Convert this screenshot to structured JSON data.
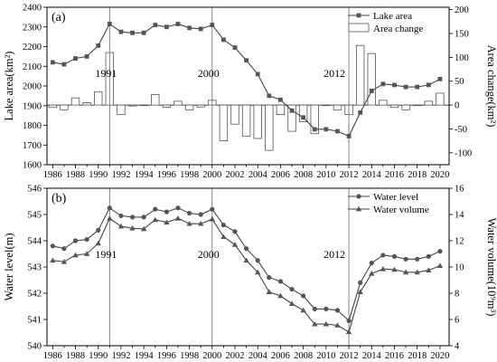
{
  "chart_data": [
    {
      "type": "line+bar",
      "panel_label": "(a)",
      "x": [
        1986,
        1987,
        1988,
        1989,
        1990,
        1991,
        1992,
        1993,
        1994,
        1995,
        1996,
        1997,
        1998,
        1999,
        2000,
        2001,
        2002,
        2003,
        2004,
        2005,
        2006,
        2007,
        2008,
        2009,
        2010,
        2011,
        2012,
        2013,
        2014,
        2015,
        2016,
        2017,
        2018,
        2019,
        2020
      ],
      "xlim": [
        1985.5,
        2020.8
      ],
      "xticks": [
        1986,
        1988,
        1990,
        1992,
        1994,
        1996,
        1998,
        2000,
        2002,
        2004,
        2006,
        2008,
        2010,
        2012,
        2014,
        2016,
        2018,
        2020
      ],
      "ylabel": "Lake area(km²)",
      "ylim": [
        1600,
        2400
      ],
      "yticks": [
        1600,
        1700,
        1800,
        1900,
        2000,
        2100,
        2200,
        2300,
        2400
      ],
      "y2label": "Area change(km²)",
      "y2lim": [
        -125,
        205
      ],
      "y2ticks": [
        -100,
        -50,
        0,
        50,
        100,
        150,
        200
      ],
      "series": [
        {
          "name": "Lake area",
          "axis": "left",
          "style": "line-square",
          "values": [
            2120,
            2110,
            2140,
            2150,
            2205,
            2315,
            2275,
            2270,
            2270,
            2310,
            2300,
            2315,
            2295,
            2290,
            2310,
            2235,
            2195,
            2130,
            2060,
            1950,
            1930,
            1875,
            1840,
            1780,
            1780,
            1770,
            1745,
            1865,
            1975,
            2010,
            2005,
            1995,
            1995,
            2005,
            2035
          ]
        },
        {
          "name": "Area change",
          "axis": "right",
          "style": "hollow-bar",
          "values": [
            -5,
            -10,
            15,
            5,
            28,
            110,
            -20,
            -2,
            0,
            22,
            -5,
            8,
            -10,
            -4,
            10,
            -75,
            -40,
            -65,
            -70,
            -95,
            -20,
            -55,
            -35,
            -60,
            0,
            -10,
            -20,
            125,
            108,
            10,
            -5,
            -10,
            0,
            8,
            25
          ]
        }
      ],
      "vlines": [
        1991,
        2000,
        2012
      ],
      "annotations": [
        "1991",
        "2000",
        "2012"
      ],
      "legend_placement": "top-right"
    },
    {
      "type": "line",
      "panel_label": "(b)",
      "x": [
        1986,
        1987,
        1988,
        1989,
        1990,
        1991,
        1992,
        1993,
        1994,
        1995,
        1996,
        1997,
        1998,
        1999,
        2000,
        2001,
        2002,
        2003,
        2004,
        2005,
        2006,
        2007,
        2008,
        2009,
        2010,
        2011,
        2012,
        2013,
        2014,
        2015,
        2016,
        2017,
        2018,
        2019,
        2020
      ],
      "xlim": [
        1985.5,
        2020.8
      ],
      "xticks": [
        1986,
        1988,
        1990,
        1992,
        1994,
        1996,
        1998,
        2000,
        2002,
        2004,
        2006,
        2008,
        2010,
        2012,
        2014,
        2016,
        2018,
        2020
      ],
      "ylabel": "Water level(m)",
      "ylim": [
        540,
        546
      ],
      "yticks": [
        540,
        541,
        542,
        543,
        544,
        545,
        546
      ],
      "y2label": "Water volume(10⁹m³)",
      "y2lim": [
        4,
        16
      ],
      "y2ticks": [
        4,
        6,
        8,
        10,
        12,
        14,
        16
      ],
      "series": [
        {
          "name": "Water level",
          "axis": "left",
          "style": "line-circle",
          "values": [
            543.8,
            543.7,
            544.0,
            544.05,
            544.4,
            545.25,
            544.95,
            544.9,
            544.9,
            545.2,
            545.1,
            545.25,
            545.05,
            545.0,
            545.2,
            544.6,
            544.35,
            543.7,
            543.25,
            542.6,
            542.45,
            542.15,
            541.9,
            541.4,
            541.4,
            541.35,
            540.95,
            542.4,
            543.15,
            543.45,
            543.4,
            543.3,
            543.3,
            543.4,
            543.6
          ]
        },
        {
          "name": "Water volume",
          "axis": "right",
          "style": "line-triangle",
          "values": [
            10.5,
            10.4,
            10.9,
            11.0,
            11.8,
            13.7,
            13.1,
            12.95,
            12.9,
            13.6,
            13.4,
            13.7,
            13.3,
            13.3,
            13.65,
            12.3,
            11.7,
            10.5,
            9.6,
            8.1,
            7.8,
            7.2,
            6.7,
            5.65,
            5.65,
            5.55,
            5.05,
            8.1,
            9.5,
            9.85,
            9.8,
            9.6,
            9.6,
            9.75,
            10.1
          ]
        }
      ],
      "vlines": [
        1991,
        2000,
        2012
      ],
      "annotations": [
        "1991",
        "2000",
        "2012"
      ],
      "legend_placement": "top-right"
    }
  ]
}
